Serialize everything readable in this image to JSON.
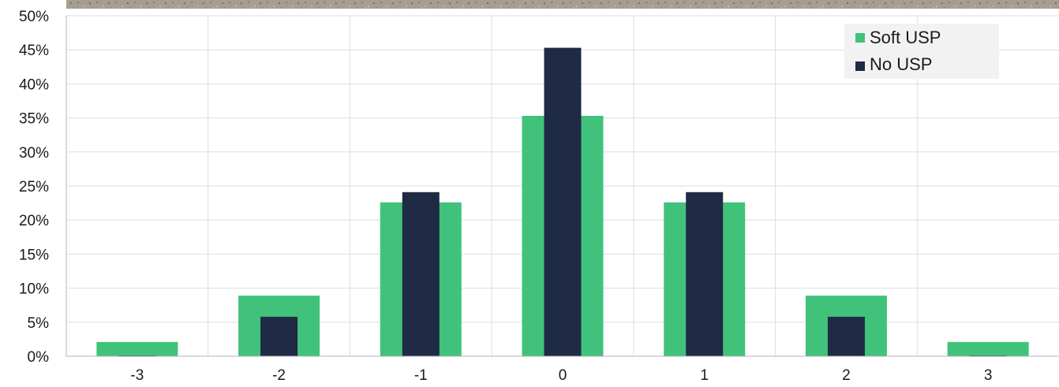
{
  "chart_data": {
    "type": "bar",
    "categories": [
      "-3",
      "-2",
      "-1",
      "0",
      "1",
      "2",
      "3"
    ],
    "series": [
      {
        "name": "Soft USP",
        "values": [
          2.1,
          8.9,
          22.6,
          35.3,
          22.6,
          8.9,
          2.1
        ],
        "color": "#41c27a",
        "width": "wide"
      },
      {
        "name": "No USP",
        "values": [
          0.1,
          5.8,
          24.1,
          45.3,
          24.1,
          5.8,
          0.1
        ],
        "color": "#1f2a44",
        "width": "narrow"
      }
    ],
    "ylim": [
      0,
      50
    ],
    "yticks": [
      "0%",
      "5%",
      "10%",
      "15%",
      "20%",
      "25%",
      "30%",
      "35%",
      "40%",
      "45%",
      "50%"
    ],
    "ytick_values": [
      0,
      5,
      10,
      15,
      20,
      25,
      30,
      35,
      40,
      45,
      50
    ],
    "title": "",
    "xlabel": "",
    "ylabel": "",
    "grid": true,
    "legend_position": "top-right",
    "gridline_color": "#d9dee8",
    "legend_background": "#f2f2f2",
    "top_strip_color": "#a89e90"
  }
}
